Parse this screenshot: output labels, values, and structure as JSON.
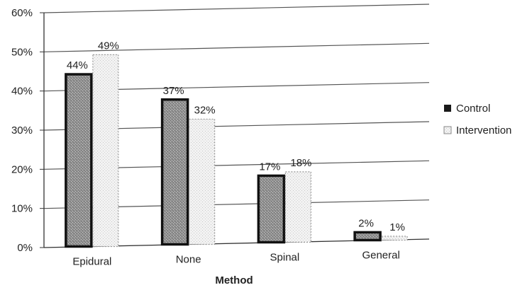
{
  "chart_data": {
    "type": "bar",
    "title": "",
    "xlabel": "Method",
    "ylabel": "",
    "categories": [
      "Epidural",
      "None",
      "Spinal",
      "General"
    ],
    "ylim": [
      0,
      60
    ],
    "yticks": [
      "0%",
      "10%",
      "20%",
      "30%",
      "40%",
      "50%",
      "60%"
    ],
    "grid": true,
    "legend_position": "right",
    "series": [
      {
        "name": "Control",
        "values": [
          44,
          37,
          17,
          2
        ],
        "labels": [
          "44%",
          "37%",
          "17%",
          "2%"
        ],
        "color": "#9a9a9a"
      },
      {
        "name": "Intervention",
        "values": [
          49,
          32,
          18,
          1
        ],
        "labels": [
          "49%",
          "32%",
          "18%",
          "1%"
        ],
        "color": "#e8e8e8"
      }
    ]
  }
}
